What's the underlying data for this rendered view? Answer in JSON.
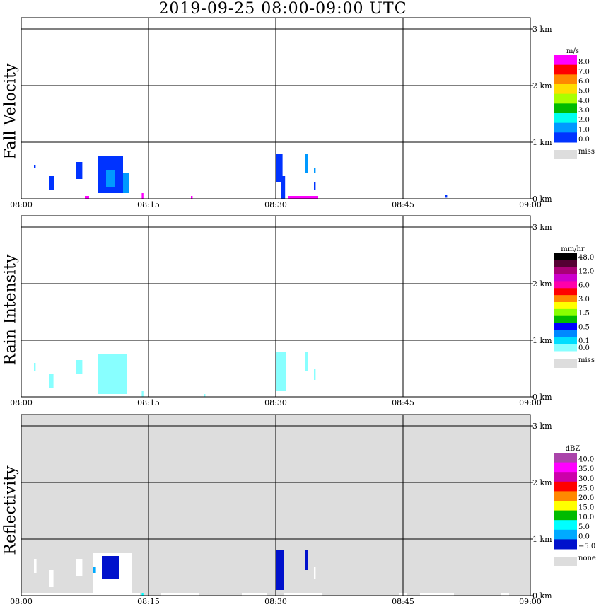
{
  "title": "2019-09-25   08:00-09:00 UTC",
  "colors": {
    "grid": "#000000",
    "miss": "#dddddd",
    "bg": "#ffffff"
  },
  "chart_data": [
    {
      "type": "heatmap",
      "title": "Fall Velocity",
      "x_ticks": [
        "08:00",
        "08:15",
        "08:30",
        "08:45",
        "09:00"
      ],
      "y_ticks": [
        "0 km",
        "1 km",
        "2 km",
        "3 km"
      ],
      "ylim": [
        0,
        3.0
      ],
      "xlim_minutes": [
        0,
        60
      ],
      "background": "#ffffff",
      "legend": {
        "unit": "m/s",
        "labels": [
          "8.0",
          "7.0",
          "6.0",
          "5.0",
          "4.0",
          "3.0",
          "2.0",
          "1.0",
          "0.0"
        ],
        "colors": [
          "#ff00ff",
          "#ff0000",
          "#ff8800",
          "#ffdd00",
          "#aaff00",
          "#00bb00",
          "#00ffee",
          "#0099ff",
          "#0033ff"
        ],
        "miss_label": "miss"
      },
      "cells": [
        {
          "t0": 1.5,
          "t1": 1.7,
          "h0": 0.55,
          "h1": 0.6,
          "c": "#0033ff"
        },
        {
          "t0": 3.3,
          "t1": 3.9,
          "h0": 0.15,
          "h1": 0.4,
          "c": "#0033ff"
        },
        {
          "t0": 6.5,
          "t1": 7.2,
          "h0": 0.35,
          "h1": 0.65,
          "c": "#0033ff"
        },
        {
          "t0": 9.0,
          "t1": 12.0,
          "h0": 0.1,
          "h1": 0.75,
          "c": "#0033ff"
        },
        {
          "t0": 10.0,
          "t1": 11.0,
          "h0": 0.2,
          "h1": 0.5,
          "c": "#0099ff"
        },
        {
          "t0": 12.0,
          "t1": 12.7,
          "h0": 0.1,
          "h1": 0.45,
          "c": "#0099ff"
        },
        {
          "t0": 7.5,
          "t1": 8.0,
          "h0": 0.0,
          "h1": 0.05,
          "c": "#ff00ff"
        },
        {
          "t0": 14.2,
          "t1": 14.4,
          "h0": 0.0,
          "h1": 0.1,
          "c": "#ff00ff"
        },
        {
          "t0": 20.0,
          "t1": 20.2,
          "h0": 0.0,
          "h1": 0.05,
          "c": "#ff00ff"
        },
        {
          "t0": 30.0,
          "t1": 30.8,
          "h0": 0.3,
          "h1": 0.8,
          "c": "#0033ff"
        },
        {
          "t0": 30.6,
          "t1": 31.1,
          "h0": 0.0,
          "h1": 0.4,
          "c": "#0033ff"
        },
        {
          "t0": 33.5,
          "t1": 33.8,
          "h0": 0.45,
          "h1": 0.8,
          "c": "#0099ff"
        },
        {
          "t0": 34.5,
          "t1": 34.7,
          "h0": 0.45,
          "h1": 0.55,
          "c": "#0099ff"
        },
        {
          "t0": 34.5,
          "t1": 34.7,
          "h0": 0.15,
          "h1": 0.3,
          "c": "#0033ff"
        },
        {
          "t0": 31.5,
          "t1": 35.0,
          "h0": 0.0,
          "h1": 0.05,
          "c": "#ff00ff"
        },
        {
          "t0": 50.0,
          "t1": 50.2,
          "h0": 0.02,
          "h1": 0.07,
          "c": "#0033ff"
        }
      ]
    },
    {
      "type": "heatmap",
      "title": "Rain Intensity",
      "x_ticks": [
        "08:00",
        "08:15",
        "08:30",
        "08:45",
        "09:00"
      ],
      "y_ticks": [
        "0 km",
        "1 km",
        "2 km",
        "3 km"
      ],
      "ylim": [
        0,
        3.0
      ],
      "xlim_minutes": [
        0,
        60
      ],
      "background": "#ffffff",
      "legend": {
        "unit": "mm/hr",
        "labels": [
          "48.0",
          "",
          "12.0",
          "",
          "6.0",
          "",
          "3.0",
          "",
          "1.5",
          "",
          "0.5",
          "",
          "0.1",
          "0.0"
        ],
        "colors": [
          "#000000",
          "#550033",
          "#aa0077",
          "#cc00cc",
          "#ff00aa",
          "#ff0000",
          "#ff8800",
          "#ffff00",
          "#88ff00",
          "#00bb00",
          "#0000ff",
          "#0088ff",
          "#00ddff",
          "#88ffff"
        ],
        "miss_label": "miss"
      },
      "cells": [
        {
          "t0": 1.5,
          "t1": 1.7,
          "h0": 0.45,
          "h1": 0.6,
          "c": "#88ffff"
        },
        {
          "t0": 3.3,
          "t1": 3.8,
          "h0": 0.15,
          "h1": 0.4,
          "c": "#88ffff"
        },
        {
          "t0": 6.5,
          "t1": 7.2,
          "h0": 0.4,
          "h1": 0.65,
          "c": "#88ffff"
        },
        {
          "t0": 9.0,
          "t1": 12.5,
          "h0": 0.05,
          "h1": 0.75,
          "c": "#88ffff"
        },
        {
          "t0": 14.2,
          "t1": 14.4,
          "h0": 0.0,
          "h1": 0.1,
          "c": "#88ffff"
        },
        {
          "t0": 21.5,
          "t1": 21.7,
          "h0": 0.0,
          "h1": 0.05,
          "c": "#88ffff"
        },
        {
          "t0": 30.0,
          "t1": 31.2,
          "h0": 0.1,
          "h1": 0.8,
          "c": "#88ffff"
        },
        {
          "t0": 33.5,
          "t1": 33.8,
          "h0": 0.45,
          "h1": 0.8,
          "c": "#88ffff"
        },
        {
          "t0": 34.5,
          "t1": 34.7,
          "h0": 0.3,
          "h1": 0.5,
          "c": "#88ffff"
        }
      ]
    },
    {
      "type": "heatmap",
      "title": "Reflectivity",
      "x_ticks": [
        "08:00",
        "08:15",
        "08:30",
        "08:45",
        "09:00"
      ],
      "y_ticks": [
        "0 km",
        "1 km",
        "2 km",
        "3 km"
      ],
      "ylim": [
        0,
        3.0
      ],
      "xlim_minutes": [
        0,
        60
      ],
      "background": "#dddddd",
      "legend": {
        "unit": "dBZ",
        "labels": [
          "40.0",
          "35.0",
          "30.0",
          "25.0",
          "20.0",
          "15.0",
          "10.0",
          "5.0",
          "0.0",
          "−5.0"
        ],
        "colors": [
          "#aa44aa",
          "#ff00ff",
          "#cc00aa",
          "#ff0000",
          "#ff8800",
          "#ffff00",
          "#00bb00",
          "#00ffff",
          "#00aaff",
          "#0011cc"
        ],
        "miss_label": "none"
      },
      "cells": [
        {
          "t0": 1.5,
          "t1": 1.8,
          "h0": 0.4,
          "h1": 0.65,
          "c": "#ffffff"
        },
        {
          "t0": 3.3,
          "t1": 3.8,
          "h0": 0.15,
          "h1": 0.45,
          "c": "#ffffff"
        },
        {
          "t0": 6.5,
          "t1": 7.2,
          "h0": 0.35,
          "h1": 0.65,
          "c": "#ffffff"
        },
        {
          "t0": 8.5,
          "t1": 13.0,
          "h0": 0.05,
          "h1": 0.75,
          "c": "#ffffff"
        },
        {
          "t0": 9.5,
          "t1": 11.5,
          "h0": 0.3,
          "h1": 0.7,
          "c": "#0011cc"
        },
        {
          "t0": 8.5,
          "t1": 8.8,
          "h0": 0.4,
          "h1": 0.5,
          "c": "#00aaff"
        },
        {
          "t0": 0.0,
          "t1": 14.0,
          "h0": 0.0,
          "h1": 0.05,
          "c": "#ffffff"
        },
        {
          "t0": 14.2,
          "t1": 14.4,
          "h0": 0.0,
          "h1": 0.05,
          "c": "#00ffff"
        },
        {
          "t0": 16.5,
          "t1": 21.0,
          "h0": 0.0,
          "h1": 0.05,
          "c": "#ffffff"
        },
        {
          "t0": 26.0,
          "t1": 29.0,
          "h0": 0.0,
          "h1": 0.05,
          "c": "#ffffff"
        },
        {
          "t0": 30.0,
          "t1": 31.0,
          "h0": 0.1,
          "h1": 0.8,
          "c": "#0011cc"
        },
        {
          "t0": 31.0,
          "t1": 35.5,
          "h0": 0.0,
          "h1": 0.05,
          "c": "#ffffff"
        },
        {
          "t0": 33.5,
          "t1": 33.8,
          "h0": 0.45,
          "h1": 0.8,
          "c": "#0011cc"
        },
        {
          "t0": 34.5,
          "t1": 34.7,
          "h0": 0.3,
          "h1": 0.5,
          "c": "#ffffff"
        },
        {
          "t0": 44.5,
          "t1": 45.5,
          "h0": 0.0,
          "h1": 0.05,
          "c": "#ffffff"
        },
        {
          "t0": 47.0,
          "t1": 51.0,
          "h0": 0.0,
          "h1": 0.05,
          "c": "#ffffff"
        },
        {
          "t0": 56.5,
          "t1": 57.5,
          "h0": 0.0,
          "h1": 0.05,
          "c": "#ffffff"
        }
      ]
    }
  ]
}
